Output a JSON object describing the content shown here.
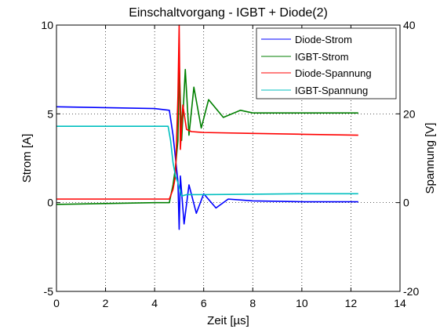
{
  "chart_data": {
    "type": "line",
    "title": "Einschaltvorgang - IGBT + Diode(2)",
    "xlabel": "Zeit [µs]",
    "ylabel_left": "Strom [A]",
    "ylabel_right": "Spannung [V]",
    "xlim": [
      0,
      14
    ],
    "ylim_left": [
      -5,
      10
    ],
    "ylim_right": [
      -20,
      40
    ],
    "xticks": [
      "0",
      "2",
      "4",
      "6",
      "8",
      "10",
      "12",
      "14"
    ],
    "yticks_left": [
      "-5",
      "0",
      "5",
      "10"
    ],
    "yticks_right": [
      "-20",
      "0",
      "20",
      "40"
    ],
    "grid": true,
    "legend_position": "top-right",
    "series": [
      {
        "name": "Diode-Strom",
        "axis": "left",
        "color": "#0000ff",
        "x": [
          0,
          2,
          4,
          4.6,
          4.75,
          4.85,
          4.95,
          5.0,
          5.05,
          5.2,
          5.4,
          5.7,
          6.0,
          6.5,
          7.0,
          8,
          10,
          12.3
        ],
        "y": [
          5.4,
          5.35,
          5.3,
          5.2,
          3.8,
          2.5,
          1.2,
          -1.5,
          1.5,
          -1.2,
          1.0,
          -0.6,
          0.5,
          -0.3,
          0.2,
          0.1,
          0.05,
          0.05
        ]
      },
      {
        "name": "IGBT-Strom",
        "axis": "left",
        "color": "#007f00",
        "x": [
          0,
          2,
          4,
          4.6,
          4.75,
          4.85,
          4.95,
          5.0,
          5.1,
          5.25,
          5.4,
          5.6,
          5.9,
          6.2,
          6.8,
          7.5,
          8,
          10,
          12.3
        ],
        "y": [
          -0.1,
          -0.05,
          0.0,
          0.0,
          1.0,
          2.0,
          3.5,
          8.0,
          3.5,
          7.5,
          3.8,
          6.5,
          4.2,
          5.8,
          4.8,
          5.2,
          5.05,
          5.05,
          5.05
        ]
      },
      {
        "name": "Diode-Spannung",
        "axis": "right",
        "color": "#ff0000",
        "x": [
          0,
          2,
          4,
          4.6,
          4.75,
          4.85,
          4.95,
          5.0,
          5.05,
          5.15,
          5.3,
          5.5,
          6.0,
          8,
          10,
          12.3
        ],
        "y": [
          0.8,
          0.8,
          0.8,
          0.8,
          3.0,
          6.0,
          24.0,
          40.0,
          12.0,
          22.0,
          16.5,
          16.0,
          15.8,
          15.6,
          15.4,
          15.2
        ]
      },
      {
        "name": "IGBT-Spannung",
        "axis": "right",
        "color": "#00bfbf",
        "x": [
          0,
          2,
          4,
          4.55,
          4.65,
          4.75,
          4.85,
          4.95,
          5.0,
          5.1,
          5.3,
          6.0,
          8,
          10,
          12.3
        ],
        "y": [
          17.2,
          17.2,
          17.2,
          17.2,
          14.0,
          9.0,
          6.0,
          4.5,
          3.5,
          1.5,
          1.8,
          1.8,
          1.9,
          2.0,
          2.0
        ]
      }
    ]
  }
}
